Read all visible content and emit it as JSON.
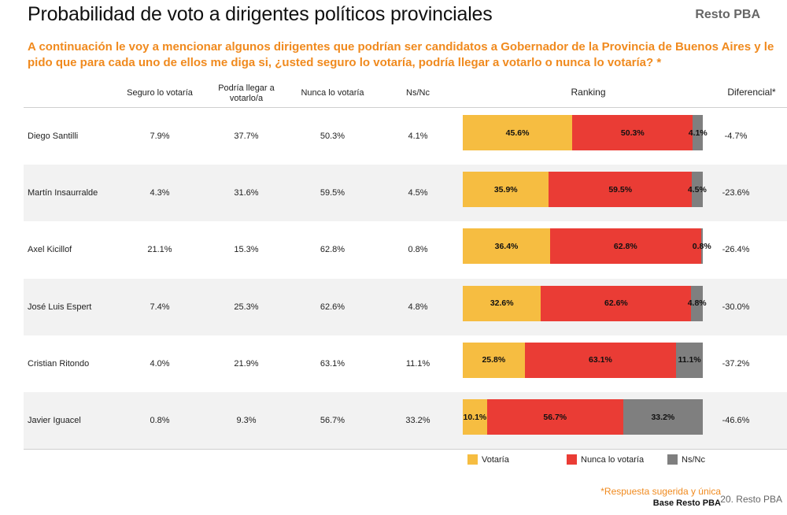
{
  "header": {
    "title": "Probabilidad de voto a dirigentes políticos provinciales",
    "region": "Resto PBA",
    "question": "A continuación le voy a mencionar algunos dirigentes que podrían ser candidatos a Gobernador de la Provincia de Buenos Aires y le pido que para cada uno de ellos me diga si, ¿usted seguro lo votaría, podría llegar a votarlo o nunca lo votaría? *"
  },
  "columns": {
    "seguro": "Seguro lo votaría",
    "podria": "Podría llegar a votarlo/a",
    "nunca": "Nunca lo  votaría",
    "nsnc": "Ns/Nc",
    "ranking": "Ranking",
    "diferencial": "Diferencial*"
  },
  "colors": {
    "votaria": "#f6bd41",
    "nunca": "#ea3c35",
    "nsnc": "#7f7f7f",
    "accent": "#f08a1e"
  },
  "chart_data": {
    "type": "bar",
    "stacked": true,
    "orientation": "horizontal",
    "categories": [
      "Diego Santilli",
      "Martín Insaurralde",
      "Axel Kicillof",
      "José Luis Espert",
      "Cristian Ritondo",
      "Javier Iguacel"
    ],
    "series": [
      {
        "name": "Votaría",
        "values": [
          45.6,
          35.9,
          36.4,
          32.6,
          25.8,
          10.1
        ],
        "labels": [
          "45.6%",
          "35.9%",
          "36.4%",
          "32.6%",
          "25.8%",
          "10.1%"
        ]
      },
      {
        "name": "Nunca lo  votaría",
        "values": [
          50.3,
          59.5,
          62.8,
          62.6,
          63.1,
          56.7
        ],
        "labels": [
          "50.3%",
          "59.5%",
          "62.8%",
          "62.6%",
          "63.1%",
          "56.7%"
        ]
      },
      {
        "name": "Ns/Nc",
        "values": [
          4.1,
          4.5,
          0.8,
          4.8,
          11.1,
          33.2
        ],
        "labels": [
          "4.1%",
          "4.5%",
          "0.8%",
          "4.8%",
          "11.1%",
          "33.2%"
        ]
      }
    ],
    "xlim": [
      0,
      100
    ],
    "legend_position": "bottom"
  },
  "rows": [
    {
      "name": "Diego Santilli",
      "seguro": "7.9%",
      "podria": "37.7%",
      "nunca": "50.3%",
      "nsnc": "4.1%",
      "diferencial": "-4.7%"
    },
    {
      "name": "Martín Insaurralde",
      "seguro": "4.3%",
      "podria": "31.6%",
      "nunca": "59.5%",
      "nsnc": "4.5%",
      "diferencial": "-23.6%"
    },
    {
      "name": "Axel Kicillof",
      "seguro": "21.1%",
      "podria": "15.3%",
      "nunca": "62.8%",
      "nsnc": "0.8%",
      "diferencial": "-26.4%"
    },
    {
      "name": "José Luis Espert",
      "seguro": "7.4%",
      "podria": "25.3%",
      "nunca": "62.6%",
      "nsnc": "4.8%",
      "diferencial": "-30.0%"
    },
    {
      "name": "Cristian Ritondo",
      "seguro": "4.0%",
      "podria": "21.9%",
      "nunca": "63.1%",
      "nsnc": "11.1%",
      "diferencial": "-37.2%"
    },
    {
      "name": "Javier Iguacel",
      "seguro": "0.8%",
      "podria": "9.3%",
      "nunca": "56.7%",
      "nsnc": "33.2%",
      "diferencial": "-46.6%"
    }
  ],
  "legend": {
    "votaria": "Votaría",
    "nunca": "Nunca lo  votaría",
    "nsnc": "Ns/Nc"
  },
  "footer": {
    "footnote": "*Respuesta sugerida y única",
    "base": "Base Resto PBA",
    "page": "20. Resto PBA"
  }
}
